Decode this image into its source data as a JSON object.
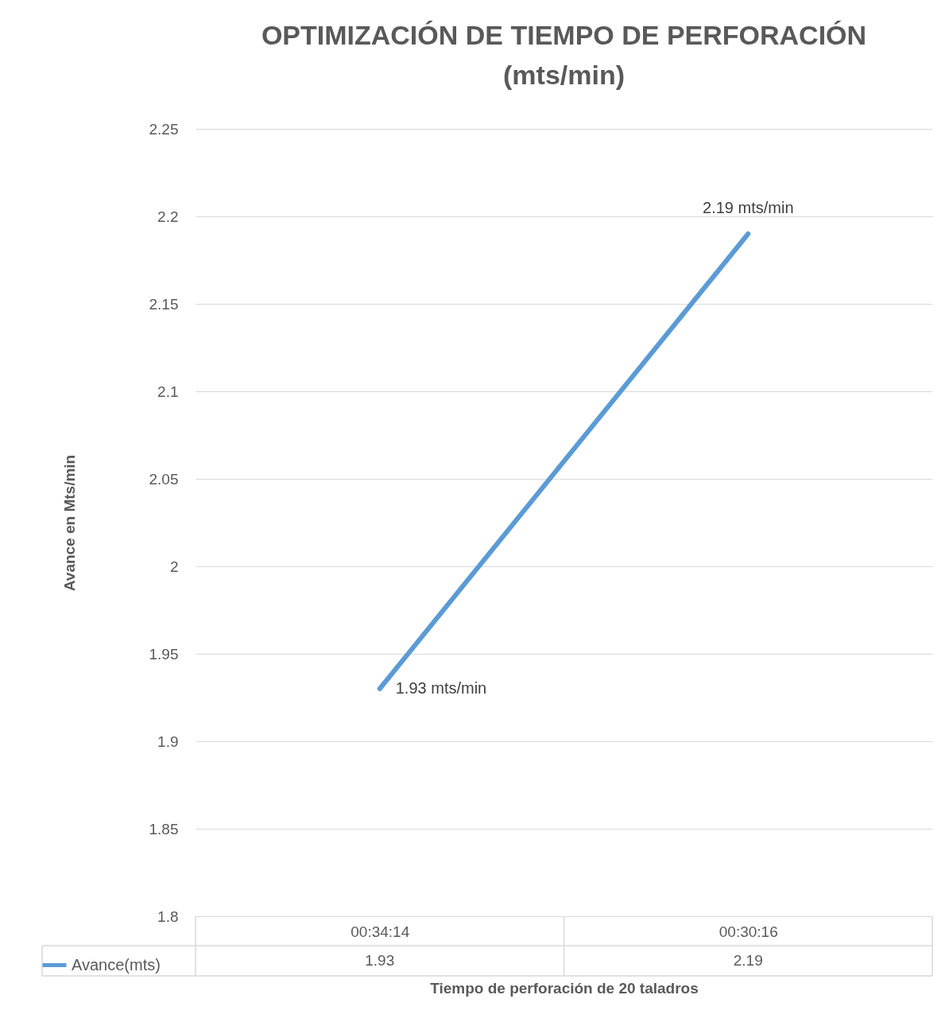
{
  "chart_data": {
    "type": "line",
    "title": "OPTIMIZACIÓN DE TIEMPO DE PERFORACIÓN (mts/min)",
    "xlabel": "Tiempo de perforación de 20 taladros",
    "ylabel": "Avance en Mts/min",
    "categories": [
      "00:34:14",
      "00:30:16"
    ],
    "series": [
      {
        "name": "Avance(mts)",
        "color": "#5b9bd5",
        "values": [
          1.93,
          2.19
        ]
      }
    ],
    "annotations": [
      {
        "text": "1.93 mts/min",
        "x": "00:34:14",
        "y": 1.93
      },
      {
        "text": "2.19 mts/min",
        "x": "00:30:16",
        "y": 2.19
      }
    ],
    "ylim": [
      1.8,
      2.25
    ],
    "yticks": [
      1.8,
      1.85,
      1.9,
      1.95,
      2,
      2.05,
      2.1,
      2.15,
      2.2,
      2.25
    ],
    "grid": "y",
    "data_labels": true,
    "legend": "bottom",
    "marker": "none",
    "line_style": "solid"
  }
}
